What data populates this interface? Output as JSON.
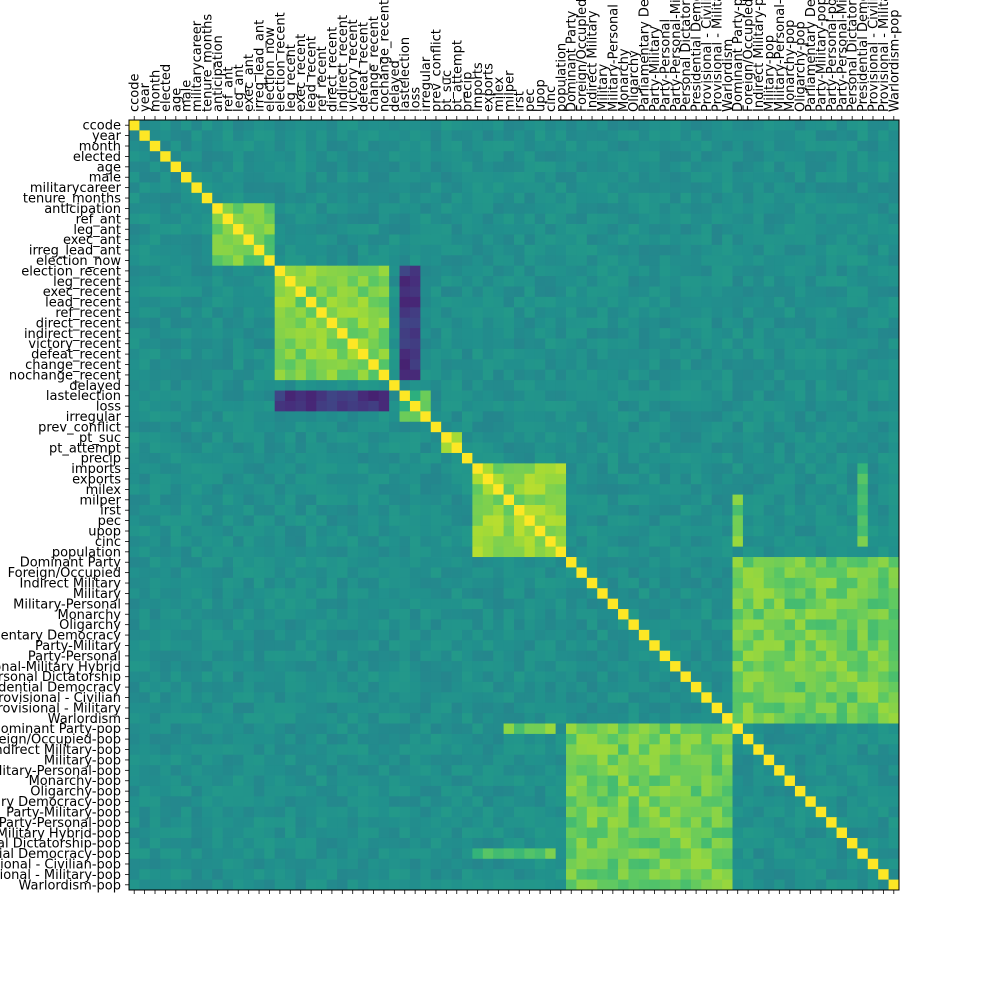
{
  "chart_data": {
    "type": "heatmap",
    "title": "",
    "xlabel": "",
    "ylabel": "",
    "colormap": "viridis",
    "value_range": [
      -1,
      1
    ],
    "grid": false,
    "legend": "none",
    "labels": [
      "ccode",
      "year",
      "month",
      "elected",
      "age",
      "male",
      "militarycareer",
      "tenure_months",
      "anticipation",
      "ref_ant",
      "leg_ant",
      "exec_ant",
      "irreg_lead_ant",
      "election_now",
      "election_recent",
      "leg_recent",
      "exec_recent",
      "lead_recent",
      "ref_recent",
      "direct_recent",
      "indirect_recent",
      "victory_recent",
      "defeat_recent",
      "change_recent",
      "nochange_recent",
      "delayed",
      "lastelection",
      "loss",
      "irregular",
      "prev_conflict",
      "pt_suc",
      "pt_attempt",
      "precip",
      "imports",
      "exports",
      "milex",
      "milper",
      "irst",
      "pec",
      "upop",
      "cinc",
      "population",
      "Dominant Party",
      "Foreign/Occupied",
      "Indirect Military",
      "Military",
      "Military-Personal",
      "Monarchy",
      "Oligarchy",
      "Parliamentary Democracy",
      "Party-Military",
      "Party-Personal",
      "Party-Personal-Military Hybrid",
      "Personal Dictatorship",
      "Presidential Democracy",
      "Provisional - Civilian",
      "Provisional - Military",
      "Warlordism",
      "Dominant Party-pop",
      "Foreign/Occupied-pop",
      "Indirect Military-pop",
      "Military-pop",
      "Military-Personal-pop",
      "Monarchy-pop",
      "Oligarchy-pop",
      "Parliamentary Democracy-pop",
      "Party-Military-pop",
      "Party-Personal-pop",
      "Party-Personal-Military Hybrid-pop",
      "Personal Dictatorship-pop",
      "Presidential Democracy-pop",
      "Provisional - Civilian-pop",
      "Provisional - Military-pop",
      "Warlordism-pop"
    ],
    "block_correlations": [
      {
        "rows": [
          8,
          12
        ],
        "cols": [
          8,
          13
        ],
        "value": 0.55
      },
      {
        "rows": [
          14,
          24
        ],
        "cols": [
          14,
          24
        ],
        "value": 0.6
      },
      {
        "rows": [
          26,
          27
        ],
        "cols": [
          14,
          24
        ],
        "value": -0.7
      },
      {
        "rows": [
          27,
          28
        ],
        "cols": [
          26,
          28
        ],
        "value": 0.4
      },
      {
        "rows": [
          30,
          31
        ],
        "cols": [
          30,
          31
        ],
        "value": 0.85
      },
      {
        "rows": [
          33,
          41
        ],
        "cols": [
          33,
          41
        ],
        "value": 0.65
      },
      {
        "rows": [
          58,
          73
        ],
        "cols": [
          42,
          57
        ],
        "value": 0.55
      },
      {
        "rows": [
          58,
          58
        ],
        "cols": [
          36,
          40
        ],
        "value": 0.55
      },
      {
        "rows": [
          70,
          70
        ],
        "cols": [
          33,
          40
        ],
        "value": 0.45
      }
    ]
  }
}
